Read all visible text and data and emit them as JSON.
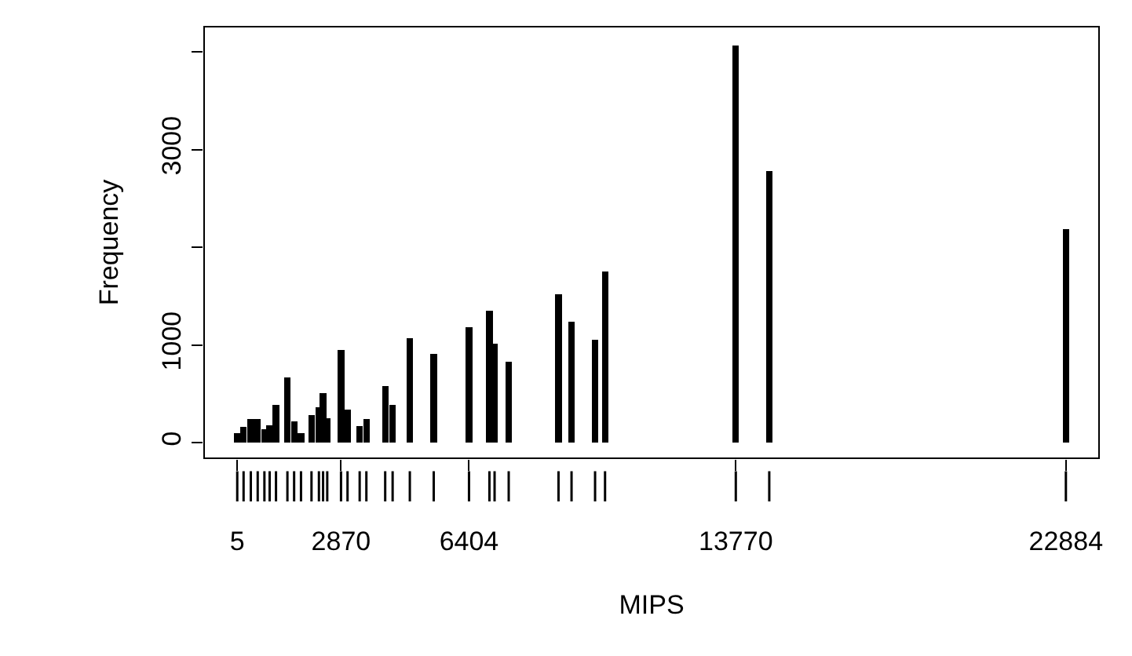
{
  "chart_data": {
    "type": "bar",
    "xlabel": "MIPS",
    "ylabel": "Frequency",
    "x": [
      5,
      180,
      380,
      570,
      755,
      900,
      1075,
      1390,
      1575,
      1765,
      2055,
      2260,
      2375,
      2490,
      2870,
      3050,
      3385,
      3570,
      4090,
      4295,
      4770,
      5430,
      6404,
      6968,
      7110,
      7500,
      8875,
      9235,
      9885,
      10160,
      13770,
      14694,
      22884
    ],
    "values": [
      100,
      160,
      240,
      240,
      140,
      180,
      390,
      670,
      220,
      100,
      280,
      360,
      510,
      250,
      950,
      340,
      170,
      240,
      580,
      390,
      1070,
      910,
      1180,
      1350,
      1010,
      830,
      1520,
      1240,
      1050,
      1750,
      4070,
      2780,
      2190
    ],
    "color": "#000000",
    "xlim": [
      -910,
      23799
    ],
    "xticks": [
      5,
      2870,
      6404,
      13770,
      22884
    ],
    "ylim": [
      -160,
      4260
    ],
    "yticks": [
      0,
      1000,
      {
        "value": 2000,
        "label": null
      },
      3000,
      {
        "value": 4000,
        "label": null
      }
    ],
    "grid": false,
    "legend": false
  }
}
